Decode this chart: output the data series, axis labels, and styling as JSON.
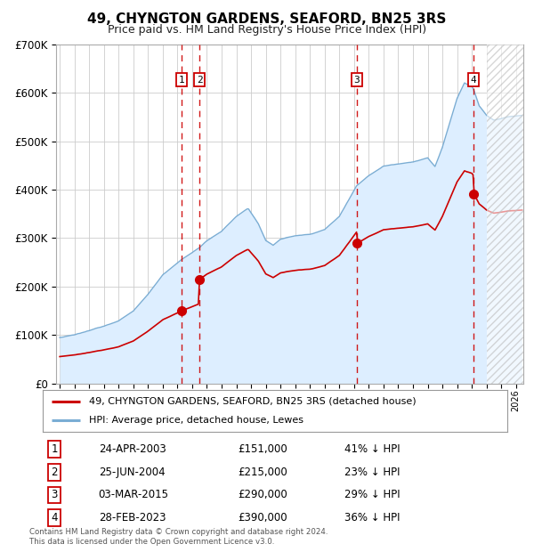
{
  "title": "49, CHYNGTON GARDENS, SEAFORD, BN25 3RS",
  "subtitle": "Price paid vs. HM Land Registry's House Price Index (HPI)",
  "legend_line1": "49, CHYNGTON GARDENS, SEAFORD, BN25 3RS (detached house)",
  "legend_line2": "HPI: Average price, detached house, Lewes",
  "footer": "Contains HM Land Registry data © Crown copyright and database right 2024.\nThis data is licensed under the Open Government Licence v3.0.",
  "transactions": [
    {
      "num": 1,
      "date": "24-APR-2003",
      "price": 151000,
      "hpi_rel": "41% ↓ HPI"
    },
    {
      "num": 2,
      "date": "25-JUN-2004",
      "price": 215000,
      "hpi_rel": "23% ↓ HPI"
    },
    {
      "num": 3,
      "date": "03-MAR-2015",
      "price": 290000,
      "hpi_rel": "29% ↓ HPI"
    },
    {
      "num": 4,
      "date": "28-FEB-2023",
      "price": 390000,
      "hpi_rel": "36% ↓ HPI"
    }
  ],
  "hpi_color": "#7aadd4",
  "price_color": "#cc0000",
  "hpi_fill_color": "#ddeeff",
  "vline_color": "#cc0000",
  "background_color": "#ffffff",
  "grid_color": "#cccccc",
  "ylim": [
    0,
    700000
  ],
  "xlim_start": 1994.75,
  "xlim_end": 2026.5,
  "yticks": [
    0,
    100000,
    200000,
    300000,
    400000,
    500000,
    600000,
    700000
  ],
  "transaction_dates_f": [
    2003.29,
    2004.49,
    2015.17,
    2023.12
  ],
  "transaction_prices": [
    151000,
    215000,
    290000,
    390000
  ],
  "hatch_start": 2024.0
}
